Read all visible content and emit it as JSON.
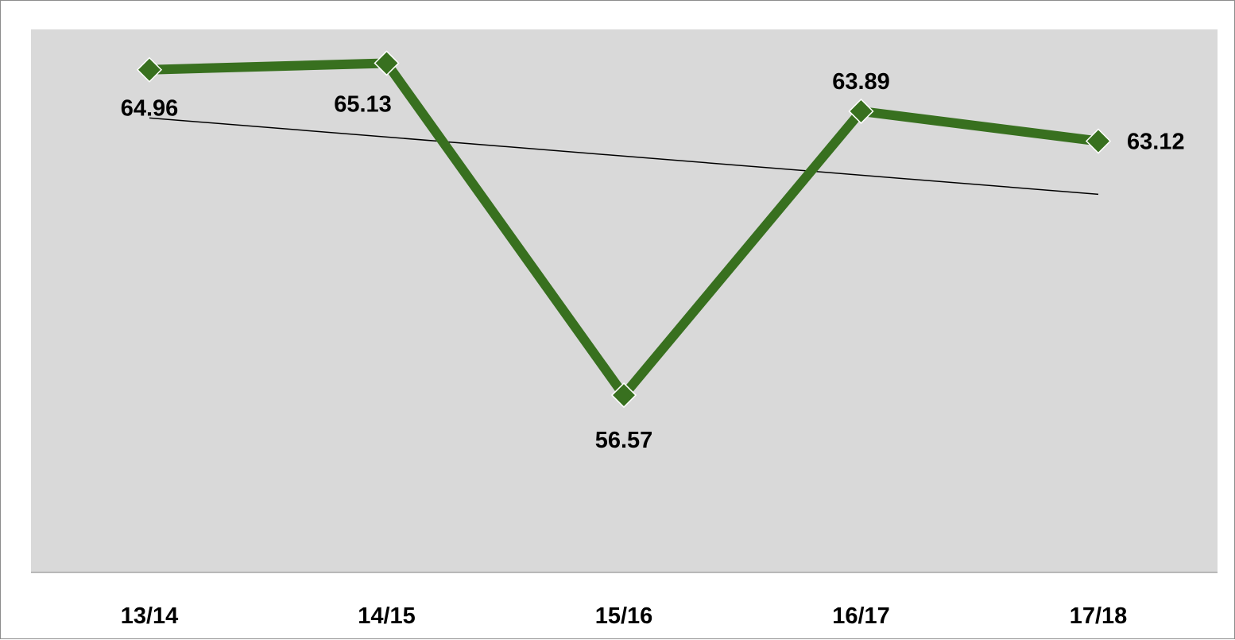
{
  "chart_data": {
    "type": "line",
    "title": "",
    "xlabel": "",
    "ylabel": "",
    "categories": [
      "13/14",
      "14/15",
      "15/16",
      "16/17",
      "17/18"
    ],
    "series": [
      {
        "values": [
          64.96,
          65.13,
          56.57,
          63.89,
          63.12
        ],
        "color": "#38701f",
        "marker": "diamond"
      }
    ],
    "data_labels": [
      "64.96",
      "65.13",
      "56.57",
      "63.89",
      "63.12"
    ],
    "trendline": {
      "type": "linear",
      "color": "#000000"
    },
    "ylim": [
      52,
      66
    ],
    "grid": false,
    "legend": "none",
    "plot_background": "#d9d9d9"
  }
}
